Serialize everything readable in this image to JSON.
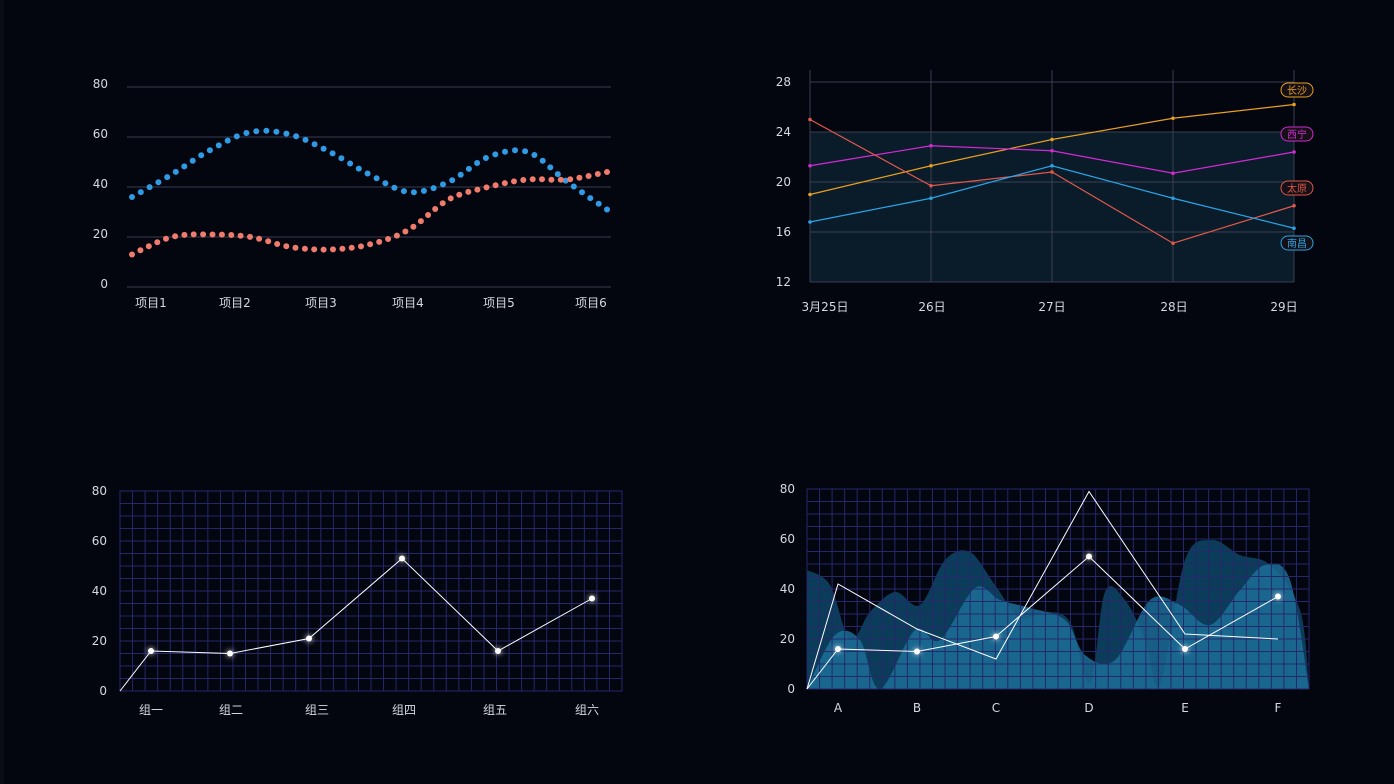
{
  "colors": {
    "background": "#03050f",
    "axis_text": "#d6d9e2",
    "grid_line": "#3a4052",
    "dense_grid": "#25286b",
    "blue_dots": "#2f9be4",
    "red_dots": "#f07b6c",
    "band_fill": "#0a1b2a",
    "area_dark": "#0c3f5e",
    "area_light": "#1c6f99",
    "white_line": "#ffffff"
  },
  "chart_data": [
    {
      "id": "chart1",
      "type": "scatter",
      "categories": [
        "项目1",
        "项目2",
        "项目3",
        "项目4",
        "项目5",
        "项目6"
      ],
      "yticks": [
        "0",
        "20",
        "40",
        "60",
        "80"
      ],
      "ylim": [
        0,
        80
      ],
      "grid": "horizontal",
      "series": [
        {
          "color": "#2f9be4",
          "x": [
            0,
            0.5,
            1,
            1.5,
            2,
            2.5,
            3,
            3.5,
            4,
            4.5,
            5,
            5.5,
            6
          ],
          "y": [
            36,
            45,
            55,
            62,
            61,
            54,
            45,
            38,
            42,
            52,
            54,
            42,
            31
          ]
        },
        {
          "color": "#f07b6c",
          "x": [
            0,
            0.5,
            1,
            1.5,
            2,
            2.5,
            3,
            3.5,
            4,
            4.5,
            5,
            5.5,
            6
          ],
          "y": [
            13,
            20,
            21,
            20,
            16,
            15,
            17,
            23,
            35,
            40,
            43,
            43,
            46
          ]
        }
      ]
    },
    {
      "id": "chart2",
      "type": "line",
      "categories": [
        "3月25日",
        "26日",
        "27日",
        "28日",
        "29日"
      ],
      "yticks": [
        "12",
        "16",
        "20",
        "24",
        "28"
      ],
      "ylim": [
        12,
        28
      ],
      "grid": "both",
      "band": [
        12,
        24
      ],
      "series": [
        {
          "name": "长沙",
          "color": "#e8a020",
          "values": [
            19,
            21.3,
            23.4,
            25.1,
            26.2
          ]
        },
        {
          "name": "西宁",
          "color": "#d42ad4",
          "values": [
            21.3,
            22.9,
            22.5,
            20.7,
            22.4
          ]
        },
        {
          "name": "太原",
          "color": "#e0584a",
          "values": [
            25,
            19.7,
            20.8,
            15.1,
            18.1
          ]
        },
        {
          "name": "南昌",
          "color": "#29a4e6",
          "values": [
            16.8,
            18.7,
            21.3,
            18.7,
            16.3
          ]
        }
      ]
    },
    {
      "id": "chart3",
      "type": "line",
      "categories": [
        "组一",
        "组二",
        "组三",
        "组四",
        "组五",
        "组六"
      ],
      "yticks": [
        "0",
        "20",
        "40",
        "60",
        "80"
      ],
      "ylim": [
        0,
        80
      ],
      "grid": "dense",
      "series": [
        {
          "color": "#ffffff",
          "values": [
            16,
            15,
            21,
            53,
            16,
            37
          ]
        }
      ]
    },
    {
      "id": "chart4",
      "type": "area",
      "categories": [
        "A",
        "B",
        "C",
        "D",
        "E",
        "F"
      ],
      "yticks": [
        "0",
        "20",
        "40",
        "60",
        "80"
      ],
      "ylim": [
        0,
        80
      ],
      "grid": "dense",
      "series": [
        {
          "color": "#ffffff",
          "values": [
            16,
            15,
            21,
            53,
            16,
            37
          ],
          "markers": true
        },
        {
          "color": "#ffffff",
          "values": [
            42,
            24,
            12,
            79,
            22,
            20
          ],
          "markers": false
        }
      ]
    }
  ]
}
